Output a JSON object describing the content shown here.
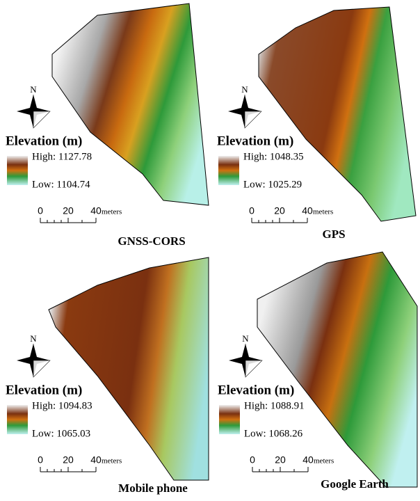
{
  "panels": [
    {
      "title": "GNSS-CORS",
      "north": "N",
      "legend": {
        "title": "Elevation (m)",
        "high": "High: 1127.78",
        "low": "Low: 1104.74"
      },
      "scale": {
        "ticks": [
          "0",
          "20",
          "40"
        ],
        "unit": "meters"
      }
    },
    {
      "title": "GPS",
      "north": "N",
      "legend": {
        "title": "Elevation (m)",
        "high": "High: 1048.35",
        "low": "Low: 1025.29"
      },
      "scale": {
        "ticks": [
          "0",
          "20",
          "40"
        ],
        "unit": "meters"
      }
    },
    {
      "title": "Mobile phone",
      "north": "N",
      "legend": {
        "title": "Elevation (m)",
        "high": "High: 1094.83",
        "low": "Low: 1065.03"
      },
      "scale": {
        "ticks": [
          "0",
          "20",
          "40"
        ],
        "unit": "meters"
      }
    },
    {
      "title": "Google Earth",
      "north": "N",
      "legend": {
        "title": "Elevation (m)",
        "high": "High: 1088.91",
        "low": "Low: 1068.26"
      },
      "scale": {
        "ticks": [
          "0",
          "20",
          "40"
        ],
        "unit": "meters"
      }
    }
  ]
}
